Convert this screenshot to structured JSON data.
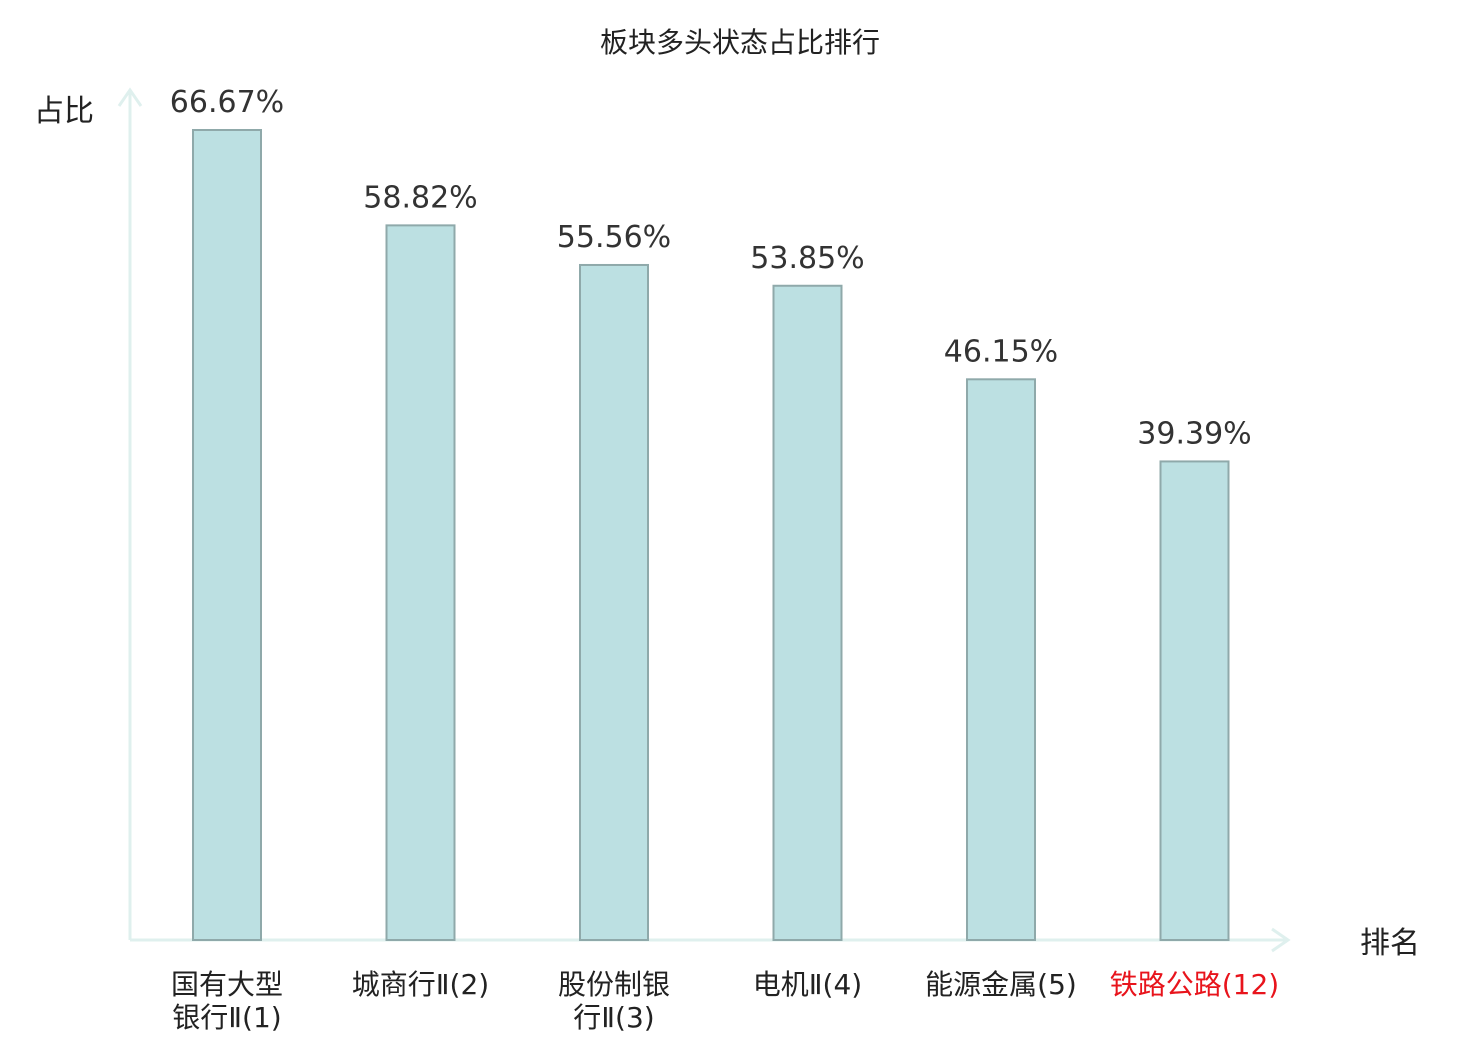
{
  "chart_data": {
    "type": "bar",
    "title": "板块多头状态占比排行",
    "ylabel": "占比",
    "xlabel": "排名",
    "ylim": [
      0,
      70
    ],
    "grid": false,
    "legend": "none",
    "categories": [
      {
        "lines": [
          "国有大型",
          "银行Ⅱ(1)"
        ],
        "highlight": false
      },
      {
        "lines": [
          "城商行Ⅱ(2)"
        ],
        "highlight": false
      },
      {
        "lines": [
          "股份制银",
          "行Ⅱ(3)"
        ],
        "highlight": false
      },
      {
        "lines": [
          "电机Ⅱ(4)"
        ],
        "highlight": false
      },
      {
        "lines": [
          "能源金属(5)"
        ],
        "highlight": false
      },
      {
        "lines": [
          "铁路公路(12)"
        ],
        "highlight": true
      }
    ],
    "values": [
      66.67,
      58.82,
      55.56,
      53.85,
      46.15,
      39.39
    ],
    "value_labels": [
      "66.67%",
      "58.82%",
      "55.56%",
      "53.85%",
      "46.15%",
      "39.39%"
    ],
    "colors": {
      "bar_fill": "#bce0e2",
      "bar_stroke": "#8fa9aa",
      "axis": "#dff0ee",
      "text": "#222222",
      "value_text": "#333333",
      "highlight": "#e8141c"
    }
  }
}
